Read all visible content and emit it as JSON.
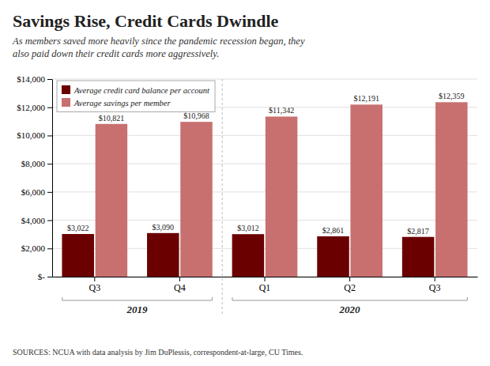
{
  "chart_data": {
    "type": "bar",
    "title": "Savings Rise, Credit Cards Dwindle",
    "subtitle": "As members saved more heavily since the pandemic recession began, they\nalso paid down their credit cards more aggressively.",
    "categories": [
      "Q3",
      "Q4",
      "Q1",
      "Q2",
      "Q3"
    ],
    "category_groups": [
      "2019",
      "2019",
      "2020",
      "2020",
      "2020"
    ],
    "series": [
      {
        "name": "Average credit card balance per account",
        "color": "#6B0000",
        "values": [
          3022,
          3090,
          3012,
          2861,
          2817
        ],
        "value_labels": [
          "$3,022",
          "$3,090",
          "$3,012",
          "$2,861",
          "$2,817"
        ]
      },
      {
        "name": "Average savings per member",
        "color": "#C87070",
        "values": [
          10821,
          10968,
          11342,
          12191,
          12359
        ],
        "value_labels": [
          "$10,821",
          "$10,968",
          "$11,342",
          "$12,191",
          "$12,359"
        ]
      }
    ],
    "ylim": [
      0,
      14000
    ],
    "yticks": [
      {
        "value": 0,
        "label": "$-"
      },
      {
        "value": 2000,
        "label": "$2,000"
      },
      {
        "value": 4000,
        "label": "$4,000"
      },
      {
        "value": 6000,
        "label": "$6,000"
      },
      {
        "value": 8000,
        "label": "$8,000"
      },
      {
        "value": 10000,
        "label": "$10,000"
      },
      {
        "value": 12000,
        "label": "$12,000"
      },
      {
        "value": 14000,
        "label": "$14,000"
      }
    ],
    "grid": true,
    "legend": "upper left",
    "data_labels": true,
    "source": "SOURCES: NCUA with data analysis by Jim DuPlessis, correspondent-at-large, CU Times."
  }
}
